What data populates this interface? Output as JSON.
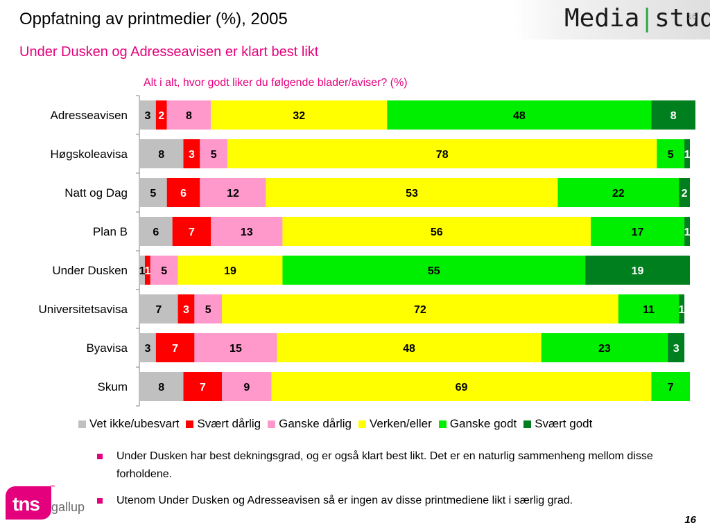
{
  "title": "Oppfatning av printmedier (%), 2005",
  "subtitle": "Under Dusken og Adresseavisen er klart best likt",
  "logo": {
    "text_left": "Media",
    "separator": "|",
    "text_right": "stud",
    "small_number": "16"
  },
  "page_number": "16",
  "tns_logo": {
    "mark": "tns",
    "text": "gallup",
    "tm": "™"
  },
  "bullets": [
    "Under Dusken har best dekningsgrad, og er også klart best likt. Det er en naturlig sammenheng mellom disse forholdene.",
    "Utenom Under Dusken og Adresseavisen så er ingen av disse printmediene likt i særlig grad."
  ],
  "chart_data": {
    "type": "bar",
    "orientation": "horizontal",
    "stacked": true,
    "title": "Alt i alt, hvor godt liker du følgende blader/aviser? (%)",
    "legend_position": "bottom",
    "categories": [
      "Adresseavisen",
      "Høgskoleavisa",
      "Natt og Dag",
      "Plan B",
      "Under Dusken",
      "Universitetsavisa",
      "Byavisa",
      "Skum"
    ],
    "series": [
      {
        "name": "Vet ikke/ubesvart",
        "color": "#c0c0c0",
        "label_color": "#000000",
        "values": [
          3,
          8,
          5,
          6,
          1,
          7,
          3,
          8
        ]
      },
      {
        "name": "Svært dårlig",
        "color": "#ff0000",
        "label_color": "#ffffff",
        "values": [
          2,
          3,
          6,
          7,
          1,
          3,
          7,
          7
        ]
      },
      {
        "name": "Ganske dårlig",
        "color": "#ff99cc",
        "label_color": "#000000",
        "values": [
          8,
          5,
          12,
          13,
          5,
          5,
          15,
          9
        ]
      },
      {
        "name": "Verken/eller",
        "color": "#ffff00",
        "label_color": "#000000",
        "values": [
          32,
          78,
          53,
          56,
          19,
          72,
          48,
          69
        ]
      },
      {
        "name": "Ganske godt",
        "color": "#00ee00",
        "label_color": "#000000",
        "values": [
          48,
          5,
          22,
          17,
          55,
          11,
          23,
          7
        ]
      },
      {
        "name": "Svært godt",
        "color": "#007f1f",
        "label_color": "#ffffff",
        "values": [
          8,
          1,
          2,
          1,
          19,
          1,
          3,
          0
        ]
      }
    ],
    "xlim": [
      0,
      100
    ]
  }
}
